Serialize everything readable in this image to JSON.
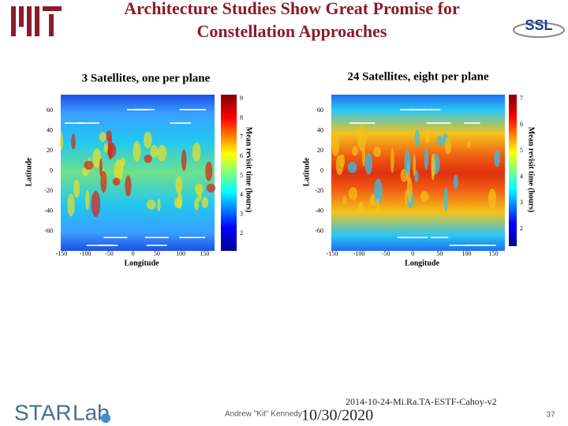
{
  "header": {
    "title_lines": [
      "Architecture Studies Show Great Promise for",
      "Constellation Approaches"
    ],
    "ssl_logo": "SSL"
  },
  "figures": [
    {
      "caption": "3 Satellites, one per plane",
      "x_label": "Longitude",
      "y_label": "Latitude",
      "colorbar_label": "Mean revisit time (hours)",
      "x_ticks": [
        "-150",
        "-100",
        "-50",
        "0",
        "50",
        "100",
        "150"
      ],
      "y_ticks": [
        "60",
        "40",
        "20",
        "0",
        "-20",
        "-40",
        "-60"
      ],
      "colorbar_ticks": [
        "9",
        "8",
        "7",
        "6",
        "5",
        "4",
        "3",
        "2"
      ]
    },
    {
      "caption": "24 Satellites, eight per plane",
      "x_label": "Longitude",
      "y_label": "Latitude",
      "colorbar_label": "Mean revisit time (hours)",
      "x_ticks": [
        "-150",
        "-100",
        "-50",
        "0",
        "50",
        "100",
        "150"
      ],
      "y_ticks": [
        "60",
        "40",
        "20",
        "0",
        "-20",
        "-40",
        "-60"
      ],
      "colorbar_ticks": [
        "7",
        "6",
        "5",
        "4",
        "3",
        "2"
      ]
    }
  ],
  "footer": {
    "logo_star": "STAR",
    "logo_lab": "Lab",
    "author": "Andrew \"Kit\" Kennedy",
    "date": "10/30/2020",
    "doc_id": "2014-10-24-Mi.Ra.TA-ESTF-Cahoy-v2",
    "page": "37"
  }
}
